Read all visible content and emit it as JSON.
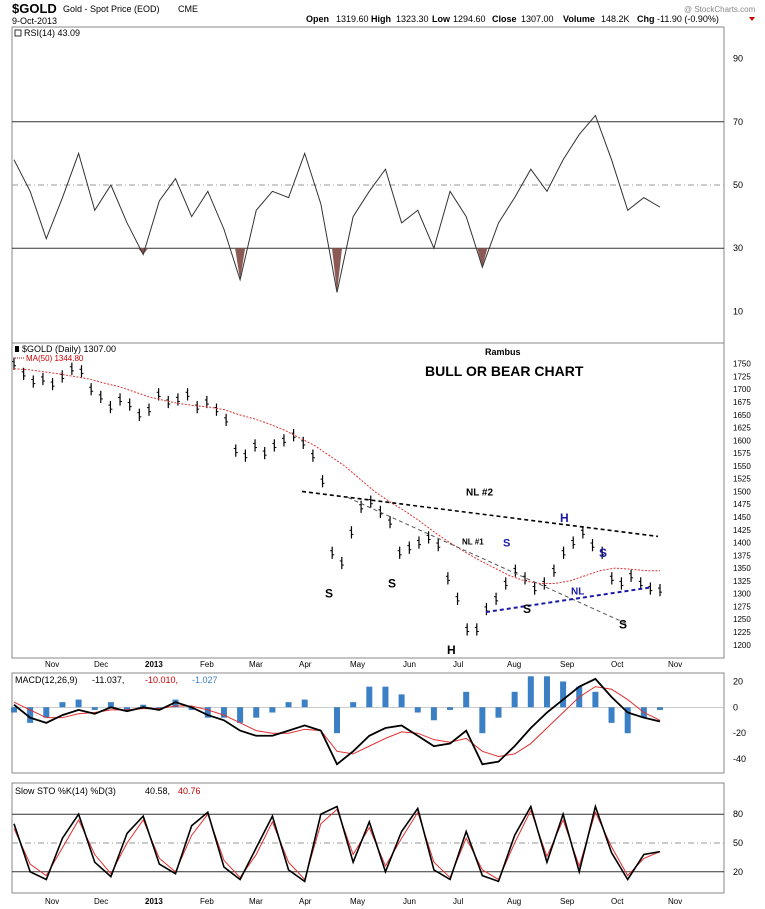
{
  "header": {
    "symbol": "$GOLD",
    "name": "Gold - Spot Price (EOD)",
    "exchange": "CME",
    "date": "9-Oct-2013",
    "open_label": "Open",
    "open": "1319.60",
    "high_label": "High",
    "high": "1323.30",
    "low_label": "Low",
    "low": "1294.60",
    "close_label": "Close",
    "close": "1307.00",
    "volume_label": "Volume",
    "volume": "148.2K",
    "chg_label": "Chg",
    "chg": "-11.90 (-0.90%)",
    "watermark": "@ StockCharts.com"
  },
  "chart_data": [
    {
      "type": "line",
      "title": "RSI(14) 43.09",
      "ylim": [
        0,
        100
      ],
      "ticks": [
        10,
        30,
        50,
        70,
        90
      ],
      "overbought": 70,
      "oversold": 30,
      "midline": 50,
      "x": [
        "Nov",
        "Nov",
        "Nov",
        "Nov",
        "Dec",
        "Dec",
        "Dec",
        "Dec",
        "2013",
        "2013",
        "2013",
        "Feb",
        "Feb",
        "Feb",
        "Mar",
        "Mar",
        "Mar",
        "Mar",
        "Apr",
        "Apr",
        "Apr",
        "Apr",
        "May",
        "May",
        "May",
        "Jun",
        "Jun",
        "Jun",
        "Jun",
        "Jul",
        "Jul",
        "Jul",
        "Aug",
        "Aug",
        "Aug",
        "Aug",
        "Sep",
        "Sep",
        "Sep",
        "Oct",
        "Oct"
      ],
      "values": [
        58,
        48,
        33,
        46,
        60,
        42,
        50,
        38,
        28,
        45,
        52,
        40,
        48,
        36,
        20,
        42,
        48,
        46,
        60,
        44,
        16,
        40,
        48,
        55,
        38,
        42,
        30,
        48,
        40,
        24,
        38,
        46,
        55,
        48,
        58,
        66,
        72,
        58,
        42,
        46,
        43
      ]
    },
    {
      "type": "candlestick",
      "title": "$GOLD (Daily) 1307.00",
      "ma_label": "MA(50) 1344.80",
      "annotation_author": "Rambus",
      "annotation_title": "BULL OR BEAR CHART",
      "ylim": [
        1180,
        1765
      ],
      "ticks": [
        1200,
        1225,
        1250,
        1275,
        1300,
        1325,
        1350,
        1375,
        1400,
        1425,
        1450,
        1475,
        1500,
        1525,
        1550,
        1575,
        1600,
        1625,
        1650,
        1675,
        1700,
        1725,
        1750
      ],
      "month_labels": [
        "Nov",
        "Dec",
        "2013",
        "Feb",
        "Mar",
        "Apr",
        "May",
        "Jun",
        "Jul",
        "Aug",
        "Sep",
        "Oct",
        "Nov"
      ],
      "price_series": [
        1750,
        1730,
        1715,
        1720,
        1710,
        1725,
        1740,
        1735,
        1700,
        1685,
        1665,
        1680,
        1670,
        1650,
        1660,
        1690,
        1675,
        1680,
        1690,
        1665,
        1675,
        1660,
        1640,
        1580,
        1570,
        1590,
        1575,
        1590,
        1600,
        1610,
        1595,
        1570,
        1520,
        1380,
        1360,
        1420,
        1470,
        1480,
        1460,
        1440,
        1380,
        1390,
        1400,
        1410,
        1395,
        1330,
        1290,
        1230,
        1230,
        1270,
        1290,
        1320,
        1345,
        1330,
        1310,
        1320,
        1345,
        1380,
        1400,
        1420,
        1395,
        1380,
        1330,
        1320,
        1335,
        1320,
        1310,
        1307
      ],
      "ma50_series": [
        1740,
        1738,
        1734,
        1730,
        1725,
        1720,
        1712,
        1705,
        1695,
        1685,
        1678,
        1672,
        1668,
        1665,
        1660,
        1650,
        1642,
        1632,
        1620,
        1605,
        1590,
        1570,
        1550,
        1525,
        1500,
        1480,
        1462,
        1442,
        1420,
        1400,
        1382,
        1365,
        1350,
        1335,
        1325,
        1320,
        1320,
        1325,
        1335,
        1345,
        1350,
        1348,
        1345,
        1344.8
      ],
      "labels": [
        {
          "text": "S",
          "x": "Apr",
          "y": 1300
        },
        {
          "text": "S",
          "x": "May",
          "y": 1320
        },
        {
          "text": "H",
          "x": "Jul",
          "y": 1190
        },
        {
          "text": "S",
          "x": "Aug",
          "y": 1270
        },
        {
          "text": "H",
          "x": "Sep",
          "y": 1448
        },
        {
          "text": "S",
          "x": "Sep",
          "y": 1380
        },
        {
          "text": "S",
          "x": "Oct",
          "y": 1240
        }
      ],
      "necklines": [
        {
          "name": "NL #2",
          "style": "black dashed"
        },
        {
          "name": "NL #1",
          "style": "grey dashed"
        },
        {
          "name": "NL",
          "style": "blue dashed"
        }
      ]
    },
    {
      "type": "line",
      "title": "MACD(12,26,9) -11.037, -10.010, -1.027",
      "macd_label": "MACD(12,26,9)",
      "macd_value": "-11.037,",
      "signal_value": "-10.010,",
      "hist_value": "-1.027",
      "ylim": [
        -50,
        25
      ],
      "ticks": [
        20,
        0,
        -20,
        -40
      ],
      "macd": [
        2,
        -8,
        -12,
        -6,
        -2,
        -5,
        0,
        -3,
        0,
        -2,
        4,
        0,
        -6,
        -10,
        -18,
        -22,
        -22,
        -18,
        -14,
        -18,
        -44,
        -34,
        -22,
        -16,
        -14,
        -22,
        -30,
        -28,
        -18,
        -44,
        -42,
        -30,
        -16,
        -4,
        6,
        16,
        22,
        8,
        -4,
        -8,
        -11
      ],
      "signal": [
        4,
        -2,
        -8,
        -8,
        -5,
        -4,
        -2,
        -2,
        -1,
        -1,
        1,
        1,
        -2,
        -6,
        -12,
        -18,
        -20,
        -20,
        -17,
        -18,
        -34,
        -36,
        -30,
        -24,
        -19,
        -20,
        -25,
        -27,
        -24,
        -34,
        -38,
        -36,
        -28,
        -16,
        -4,
        8,
        16,
        14,
        6,
        -4,
        -10
      ],
      "color_macd": "#000000",
      "color_signal": "#e03030",
      "color_hist": "#3b7fc4"
    },
    {
      "type": "line",
      "title": "Slow STO %K(14) %D(3) 40.58, 40.76",
      "sto_label": "Slow STO %K(14) %D(3)",
      "k_value": "40.58,",
      "d_value": "40.76",
      "ylim": [
        0,
        100
      ],
      "ticks": [
        20,
        50,
        80
      ],
      "k": [
        70,
        20,
        12,
        55,
        80,
        30,
        15,
        60,
        78,
        28,
        18,
        68,
        82,
        25,
        12,
        45,
        78,
        22,
        10,
        80,
        88,
        30,
        72,
        20,
        62,
        86,
        22,
        12,
        62,
        16,
        10,
        58,
        88,
        30,
        80,
        20,
        88,
        40,
        12,
        38,
        41
      ],
      "d": [
        65,
        28,
        16,
        45,
        74,
        38,
        18,
        50,
        74,
        34,
        20,
        58,
        80,
        32,
        14,
        38,
        72,
        30,
        12,
        70,
        85,
        38,
        66,
        26,
        55,
        82,
        30,
        14,
        55,
        22,
        12,
        50,
        84,
        36,
        74,
        26,
        82,
        46,
        16,
        34,
        41
      ],
      "color_k": "#000000",
      "color_d": "#e03030",
      "month_labels": [
        "Nov",
        "Dec",
        "2013",
        "Feb",
        "Mar",
        "Apr",
        "May",
        "Jun",
        "Jul",
        "Aug",
        "Sep",
        "Oct",
        "Nov"
      ]
    }
  ]
}
